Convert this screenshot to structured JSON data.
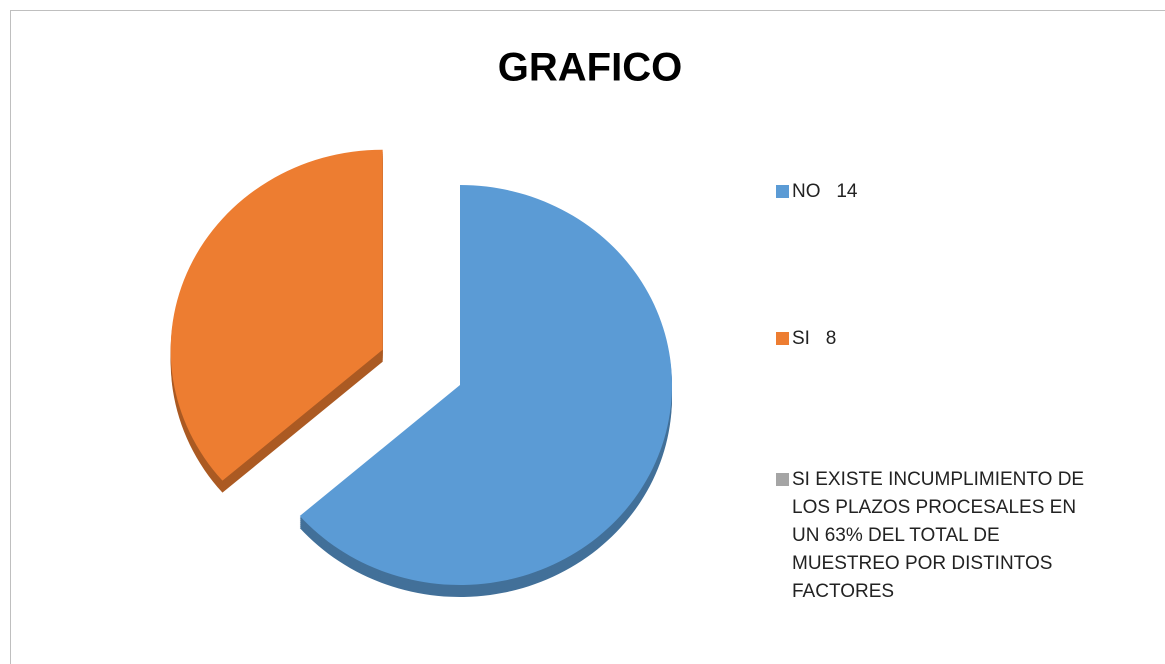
{
  "chart_data": {
    "type": "pie",
    "title": "GRAFICO",
    "categories": [
      "NO   14",
      "SI   8",
      "SI EXISTE INCUMPLIMIENTO DE LOS PLAZOS PROCESALES EN UN 63% DEL TOTAL DE MUESTREO POR DISTINTOS FACTORES"
    ],
    "values": [
      14,
      8,
      0
    ],
    "colors": [
      "#5b9bd5",
      "#ed7d31",
      "#a5a5a5"
    ],
    "exploded": [
      false,
      true,
      false
    ],
    "legend": "right"
  }
}
